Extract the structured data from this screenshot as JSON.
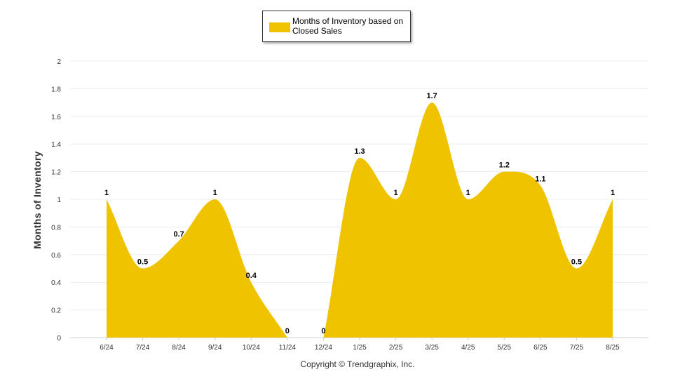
{
  "chart_data": {
    "type": "area",
    "title": "",
    "xlabel": "",
    "ylabel": "Months of Inventory",
    "ylim": [
      0,
      2
    ],
    "yticks": [
      "0",
      "0.2",
      "0.4",
      "0.6",
      "0.8",
      "1",
      "1.2",
      "1.4",
      "1.6",
      "1.8",
      "2"
    ],
    "categories": [
      "6/24",
      "7/24",
      "8/24",
      "9/24",
      "10/24",
      "11/24",
      "12/24",
      "1/25",
      "2/25",
      "3/25",
      "4/25",
      "5/25",
      "6/25",
      "7/25",
      "8/25"
    ],
    "series": [
      {
        "name": "Months of Inventory based on Closed Sales",
        "color": "#F0C300",
        "values": [
          1,
          0.5,
          0.7,
          1,
          0.4,
          0,
          0,
          1.3,
          1,
          1.7,
          1,
          1.2,
          1.1,
          0.5,
          1
        ],
        "labels": [
          "1",
          "0.5",
          "0.7",
          "1",
          "0.4",
          "0",
          "0",
          "1.3",
          "1",
          "1.7",
          "1",
          "1.2",
          "1.1",
          "0.5",
          "1"
        ]
      }
    ],
    "grid": true,
    "legend": "top-center"
  },
  "legend": {
    "label": "Months of Inventory based on Closed Sales"
  },
  "footer": {
    "copyright": "Copyright © Trendgraphix, Inc."
  }
}
